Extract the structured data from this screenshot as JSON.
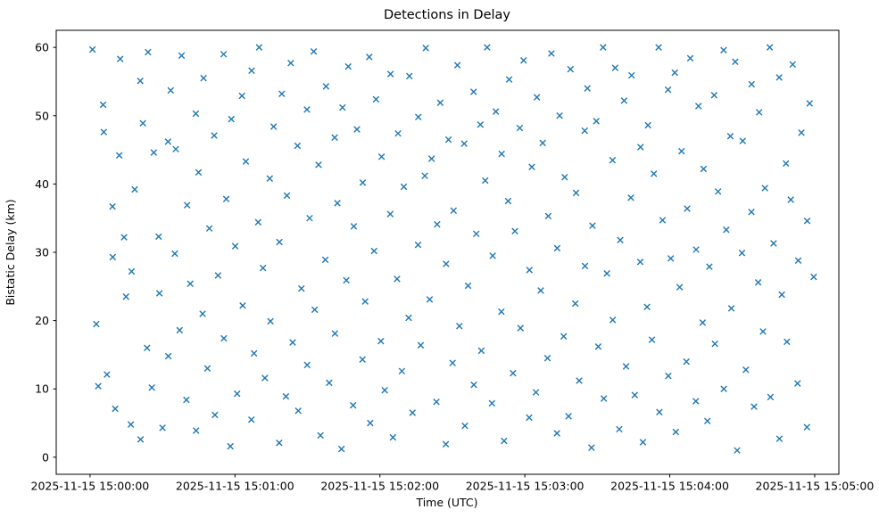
{
  "figure": {
    "background": "#ffffff",
    "frame_color": "#000000",
    "text_color": "#000000"
  },
  "chart_data": {
    "type": "scatter",
    "title": "Detections in Delay",
    "xlabel": "Time (UTC)",
    "ylabel": "Bistatic Delay (km)",
    "grid": false,
    "legend": null,
    "marker": "x",
    "marker_color": "#1f77b4",
    "marker_size": 6.5,
    "marker_linewidth": 1.4,
    "x_unit": "seconds after 2025-11-15 15:00:00 UTC",
    "xlim": [
      -14,
      310
    ],
    "ylim": [
      -2.5,
      62.5
    ],
    "x_tick_seconds": [
      0,
      60,
      120,
      180,
      240,
      300
    ],
    "x_tick_labels": [
      "2025-11-15 15:00:00",
      "2025-11-15 15:01:00",
      "2025-11-15 15:02:00",
      "2025-11-15 15:03:00",
      "2025-11-15 15:04:00",
      "2025-11-15 15:05:00"
    ],
    "y_ticks": [
      0,
      10,
      20,
      30,
      40,
      50,
      60
    ],
    "points": [
      [
        1.0,
        59.7
      ],
      [
        2.6,
        19.5
      ],
      [
        3.4,
        10.4
      ],
      [
        5.4,
        51.6
      ],
      [
        5.7,
        47.6
      ],
      [
        7.0,
        12.1
      ],
      [
        9.3,
        36.7
      ],
      [
        9.4,
        29.3
      ],
      [
        10.4,
        7.1
      ],
      [
        12.1,
        44.2
      ],
      [
        12.5,
        58.3
      ],
      [
        14.1,
        32.2
      ],
      [
        14.9,
        23.5
      ],
      [
        16.9,
        4.8
      ],
      [
        17.2,
        27.2
      ],
      [
        18.5,
        39.2
      ],
      [
        20.8,
        55.1
      ],
      [
        20.9,
        2.6
      ],
      [
        21.9,
        48.9
      ],
      [
        23.6,
        16.0
      ],
      [
        24.0,
        59.3
      ],
      [
        25.6,
        10.2
      ],
      [
        26.4,
        44.6
      ],
      [
        28.4,
        32.3
      ],
      [
        28.7,
        24.0
      ],
      [
        30.0,
        4.3
      ],
      [
        32.3,
        46.2
      ],
      [
        32.4,
        14.8
      ],
      [
        33.4,
        53.7
      ],
      [
        35.1,
        29.8
      ],
      [
        35.5,
        45.1
      ],
      [
        37.1,
        18.6
      ],
      [
        37.9,
        58.8
      ],
      [
        39.9,
        8.4
      ],
      [
        40.2,
        36.9
      ],
      [
        41.5,
        25.4
      ],
      [
        43.8,
        50.3
      ],
      [
        43.9,
        3.9
      ],
      [
        44.9,
        41.7
      ],
      [
        46.6,
        21.0
      ],
      [
        47.0,
        55.5
      ],
      [
        48.6,
        13.0
      ],
      [
        49.4,
        33.5
      ],
      [
        51.4,
        47.1
      ],
      [
        51.7,
        6.2
      ],
      [
        53.0,
        26.6
      ],
      [
        55.3,
        59.0
      ],
      [
        55.4,
        17.4
      ],
      [
        56.4,
        37.8
      ],
      [
        58.1,
        1.6
      ],
      [
        58.5,
        49.5
      ],
      [
        60.1,
        30.9
      ],
      [
        60.9,
        9.3
      ],
      [
        62.9,
        52.9
      ],
      [
        63.2,
        22.2
      ],
      [
        64.5,
        43.3
      ],
      [
        66.8,
        5.5
      ],
      [
        66.9,
        56.6
      ],
      [
        67.9,
        15.2
      ],
      [
        69.6,
        34.4
      ],
      [
        70.0,
        60.0
      ],
      [
        71.6,
        27.7
      ],
      [
        72.4,
        11.6
      ],
      [
        74.4,
        40.8
      ],
      [
        74.7,
        19.9
      ],
      [
        76.0,
        48.4
      ],
      [
        78.3,
        2.1
      ],
      [
        78.4,
        31.5
      ],
      [
        79.4,
        53.2
      ],
      [
        81.1,
        8.9
      ],
      [
        81.5,
        38.3
      ],
      [
        83.1,
        57.7
      ],
      [
        83.9,
        16.8
      ],
      [
        85.9,
        45.6
      ],
      [
        86.2,
        6.8
      ],
      [
        87.5,
        24.7
      ],
      [
        89.8,
        50.9
      ],
      [
        89.9,
        13.5
      ],
      [
        90.9,
        35.0
      ],
      [
        92.6,
        59.4
      ],
      [
        93.0,
        21.6
      ],
      [
        94.6,
        42.8
      ],
      [
        95.4,
        3.2
      ],
      [
        97.4,
        28.9
      ],
      [
        97.7,
        54.3
      ],
      [
        99.0,
        10.9
      ],
      [
        101.3,
        46.8
      ],
      [
        101.4,
        18.1
      ],
      [
        102.4,
        37.2
      ],
      [
        104.1,
        1.2
      ],
      [
        104.5,
        51.2
      ],
      [
        106.1,
        25.9
      ],
      [
        106.9,
        57.2
      ],
      [
        108.9,
        7.6
      ],
      [
        109.2,
        33.8
      ],
      [
        110.5,
        48.0
      ],
      [
        112.8,
        14.3
      ],
      [
        112.9,
        40.2
      ],
      [
        113.9,
        22.8
      ],
      [
        115.6,
        58.6
      ],
      [
        116.0,
        5.0
      ],
      [
        117.6,
        30.2
      ],
      [
        118.4,
        52.4
      ],
      [
        120.4,
        17.0
      ],
      [
        120.7,
        44.0
      ],
      [
        122.0,
        9.8
      ],
      [
        124.3,
        35.6
      ],
      [
        124.4,
        56.1
      ],
      [
        125.4,
        2.9
      ],
      [
        127.1,
        26.1
      ],
      [
        127.5,
        47.4
      ],
      [
        129.1,
        12.6
      ],
      [
        129.9,
        39.6
      ],
      [
        131.9,
        20.4
      ],
      [
        132.2,
        55.8
      ],
      [
        133.5,
        6.5
      ],
      [
        135.8,
        31.1
      ],
      [
        135.9,
        49.8
      ],
      [
        136.9,
        16.4
      ],
      [
        138.6,
        41.2
      ],
      [
        139.0,
        59.9
      ],
      [
        140.6,
        23.1
      ],
      [
        141.4,
        43.7
      ],
      [
        143.4,
        8.1
      ],
      [
        143.7,
        34.1
      ],
      [
        145.0,
        51.9
      ],
      [
        147.3,
        1.9
      ],
      [
        147.4,
        28.3
      ],
      [
        148.4,
        46.5
      ],
      [
        150.1,
        13.8
      ],
      [
        150.5,
        36.1
      ],
      [
        152.1,
        57.4
      ],
      [
        152.9,
        19.2
      ],
      [
        154.9,
        45.9
      ],
      [
        155.2,
        4.6
      ],
      [
        156.5,
        25.1
      ],
      [
        158.8,
        53.5
      ],
      [
        158.9,
        10.6
      ],
      [
        159.9,
        32.7
      ],
      [
        161.6,
        48.7
      ],
      [
        162.0,
        15.6
      ],
      [
        163.6,
        40.5
      ],
      [
        164.4,
        60.0
      ],
      [
        166.4,
        7.9
      ],
      [
        166.7,
        29.5
      ],
      [
        168.0,
        50.6
      ],
      [
        170.3,
        21.3
      ],
      [
        170.4,
        44.4
      ],
      [
        171.4,
        2.4
      ],
      [
        173.1,
        37.5
      ],
      [
        173.5,
        55.3
      ],
      [
        175.1,
        12.3
      ],
      [
        175.9,
        33.1
      ],
      [
        177.9,
        48.2
      ],
      [
        178.2,
        18.9
      ],
      [
        179.5,
        58.1
      ],
      [
        181.8,
        5.8
      ],
      [
        181.9,
        27.4
      ],
      [
        182.9,
        42.5
      ],
      [
        184.6,
        9.5
      ],
      [
        185.0,
        52.7
      ],
      [
        186.6,
        24.4
      ],
      [
        187.4,
        46.0
      ],
      [
        189.4,
        14.5
      ],
      [
        189.7,
        35.3
      ],
      [
        191.0,
        59.1
      ],
      [
        193.3,
        3.5
      ],
      [
        193.4,
        30.6
      ],
      [
        194.4,
        50.0
      ],
      [
        196.1,
        17.7
      ],
      [
        196.5,
        41.0
      ],
      [
        198.1,
        6.0
      ],
      [
        198.9,
        56.8
      ],
      [
        200.9,
        22.5
      ],
      [
        201.2,
        38.7
      ],
      [
        202.5,
        11.2
      ],
      [
        204.8,
        47.8
      ],
      [
        204.9,
        28.0
      ],
      [
        205.9,
        54.0
      ],
      [
        207.6,
        1.4
      ],
      [
        208.0,
        33.9
      ],
      [
        209.6,
        49.2
      ],
      [
        210.4,
        16.2
      ],
      [
        212.4,
        60.0
      ],
      [
        212.7,
        8.6
      ],
      [
        214.0,
        26.9
      ],
      [
        216.3,
        43.5
      ],
      [
        216.4,
        20.1
      ],
      [
        217.4,
        57.0
      ],
      [
        219.1,
        4.1
      ],
      [
        219.5,
        31.8
      ],
      [
        221.1,
        52.2
      ],
      [
        221.9,
        13.3
      ],
      [
        223.9,
        38.0
      ],
      [
        224.2,
        55.9
      ],
      [
        225.5,
        9.1
      ],
      [
        227.8,
        28.6
      ],
      [
        227.9,
        45.4
      ],
      [
        228.9,
        2.2
      ],
      [
        230.6,
        22.0
      ],
      [
        231.0,
        48.6
      ],
      [
        232.6,
        17.2
      ],
      [
        233.4,
        41.5
      ],
      [
        235.4,
        60.0
      ],
      [
        235.7,
        6.6
      ],
      [
        237.0,
        34.7
      ],
      [
        239.3,
        53.8
      ],
      [
        239.4,
        11.9
      ],
      [
        240.4,
        29.1
      ],
      [
        242.1,
        56.3
      ],
      [
        242.5,
        3.7
      ],
      [
        244.1,
        24.9
      ],
      [
        244.9,
        44.8
      ],
      [
        246.9,
        14.0
      ],
      [
        247.2,
        36.4
      ],
      [
        248.5,
        58.4
      ],
      [
        250.8,
        8.2
      ],
      [
        250.9,
        30.4
      ],
      [
        251.9,
        51.4
      ],
      [
        253.6,
        19.7
      ],
      [
        254.0,
        42.2
      ],
      [
        255.6,
        5.3
      ],
      [
        256.4,
        27.9
      ],
      [
        258.4,
        53.0
      ],
      [
        258.7,
        16.6
      ],
      [
        260.0,
        38.9
      ],
      [
        262.3,
        59.6
      ],
      [
        262.4,
        10.0
      ],
      [
        263.4,
        33.3
      ],
      [
        265.1,
        47.0
      ],
      [
        265.5,
        21.8
      ],
      [
        267.1,
        57.9
      ],
      [
        267.9,
        1.0
      ],
      [
        269.9,
        29.9
      ],
      [
        270.2,
        46.3
      ],
      [
        271.5,
        12.8
      ],
      [
        273.8,
        35.9
      ],
      [
        273.9,
        54.6
      ],
      [
        274.9,
        7.4
      ],
      [
        276.6,
        25.6
      ],
      [
        277.0,
        50.5
      ],
      [
        278.6,
        18.4
      ],
      [
        279.4,
        39.4
      ],
      [
        281.4,
        60.0
      ],
      [
        281.7,
        8.8
      ],
      [
        283.0,
        31.3
      ],
      [
        285.3,
        55.6
      ],
      [
        285.4,
        2.7
      ],
      [
        286.4,
        23.8
      ],
      [
        288.1,
        43.0
      ],
      [
        288.5,
        16.9
      ],
      [
        290.1,
        37.7
      ],
      [
        290.9,
        57.5
      ],
      [
        292.9,
        10.8
      ],
      [
        293.2,
        28.8
      ],
      [
        294.5,
        47.5
      ],
      [
        296.8,
        4.4
      ],
      [
        296.9,
        34.6
      ],
      [
        297.9,
        51.8
      ],
      [
        299.6,
        26.4
      ]
    ]
  }
}
